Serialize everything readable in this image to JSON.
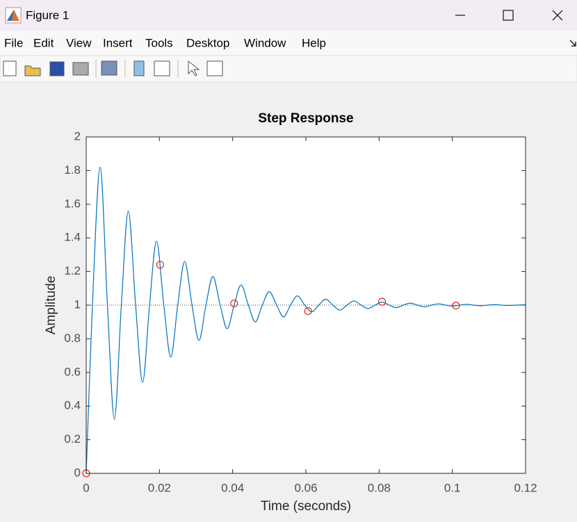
{
  "window": {
    "title": "Figure 1",
    "menu": [
      "File",
      "Edit",
      "View",
      "Insert",
      "Tools",
      "Desktop",
      "Window",
      "Help"
    ]
  },
  "chart_data": {
    "type": "line",
    "title": "Step Response",
    "xlabel": "Time (seconds)",
    "ylabel": "Amplitude",
    "xlim": [
      0,
      0.12
    ],
    "ylim": [
      0,
      2
    ],
    "xticks": [
      0,
      0.02,
      0.04,
      0.06,
      0.08,
      0.1,
      0.12
    ],
    "yticks": [
      0,
      0.2,
      0.4,
      0.6,
      0.8,
      1,
      1.2,
      1.4,
      1.6,
      1.8,
      2
    ],
    "reference_y": 1,
    "reference_color": "#444444",
    "series": [
      {
        "color": "#0072bd",
        "linestyle": "solid",
        "marker": "none",
        "x": [
          0,
          0.0017,
          0.0038,
          0.0058,
          0.0077,
          0.0096,
          0.0115,
          0.0135,
          0.0154,
          0.0173,
          0.0192,
          0.0212,
          0.0231,
          0.025,
          0.0269,
          0.0289,
          0.0308,
          0.0327,
          0.0346,
          0.0366,
          0.0385,
          0.0404,
          0.0423,
          0.0443,
          0.0462,
          0.0481,
          0.05,
          0.052,
          0.0539,
          0.0558,
          0.0577,
          0.0597,
          0.0616,
          0.0635,
          0.0654,
          0.0674,
          0.0693,
          0.0712,
          0.0731,
          0.0751,
          0.077,
          0.0789,
          0.0808,
          0.0828,
          0.0847,
          0.0866,
          0.0885,
          0.0905,
          0.0924,
          0.0943,
          0.0962,
          0.0982,
          0.1001,
          0.102,
          0.1039,
          0.1059,
          0.1078,
          0.1097,
          0.1116,
          0.1136,
          0.1155,
          0.1174,
          0.12
        ],
        "values": [
          0,
          1,
          1.82,
          1,
          0.32,
          1,
          1.56,
          1,
          0.54,
          1,
          1.38,
          1,
          0.69,
          1,
          1.26,
          1,
          0.79,
          1,
          1.17,
          1,
          0.86,
          1,
          1.12,
          1,
          0.9,
          1,
          1.08,
          1,
          0.93,
          1,
          1.055,
          1,
          0.96,
          1,
          1.035,
          1,
          0.97,
          1,
          1.025,
          1,
          0.98,
          1,
          1.018,
          1,
          0.985,
          1,
          1.012,
          1,
          0.99,
          1,
          1.008,
          1,
          0.994,
          1,
          1.005,
          1,
          0.996,
          1,
          1.003,
          1,
          0.998,
          1,
          1.002
        ]
      },
      {
        "color": "#e8211b",
        "linestyle": "none",
        "marker": "circle",
        "x": [
          0,
          0.0202,
          0.0404,
          0.0606,
          0.0808,
          0.101
        ],
        "values": [
          0,
          1.24,
          1.01,
          0.965,
          1.02,
          0.997
        ]
      }
    ]
  }
}
